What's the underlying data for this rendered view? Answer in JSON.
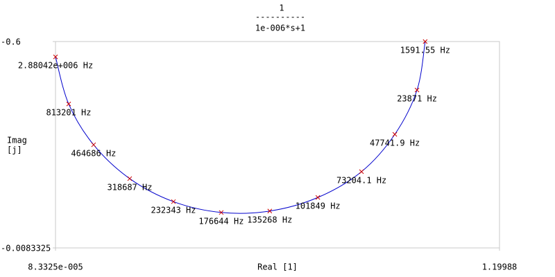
{
  "chart_data": {
    "type": "line",
    "title_numerator": "1",
    "title_bar": "----------",
    "title_denominator": "1e-006*s+1",
    "y_label_lines": [
      "Imag",
      "[j]"
    ],
    "x_label": "Real [1]",
    "xlim": [
      8.3325e-05,
      1.19988
    ],
    "xticks": [
      {
        "value": 8.3325e-05,
        "label": "8.3325e-005"
      },
      1.19988
    ],
    "ylim": [
      -0.6,
      -0.0083325
    ],
    "yticks": [
      -0.0083325,
      -0.6
    ],
    "y_inverted": true,
    "line_color": "#0000cc",
    "marker_color": "#cc0000",
    "x": [
      0.0001,
      0.0357,
      0.103,
      0.2006,
      0.3188,
      0.448,
      0.579,
      0.709,
      0.827,
      0.917,
      0.977,
      0.999
    ],
    "values": [
      -0.556,
      -0.421,
      -0.304,
      -0.207,
      -0.141,
      -0.11,
      -0.114,
      -0.153,
      -0.227,
      -0.334,
      -0.461,
      -0.6
    ],
    "point_labels": [
      "2.88042e+006 Hz",
      "813201 Hz",
      "464686 Hz",
      "318687 Hz",
      "232343 Hz",
      "176644 Hz",
      "135268 Hz",
      "101849 Hz",
      "73204.1 Hz",
      "47741.9 Hz",
      "23871 Hz",
      "1591.55 Hz"
    ]
  }
}
